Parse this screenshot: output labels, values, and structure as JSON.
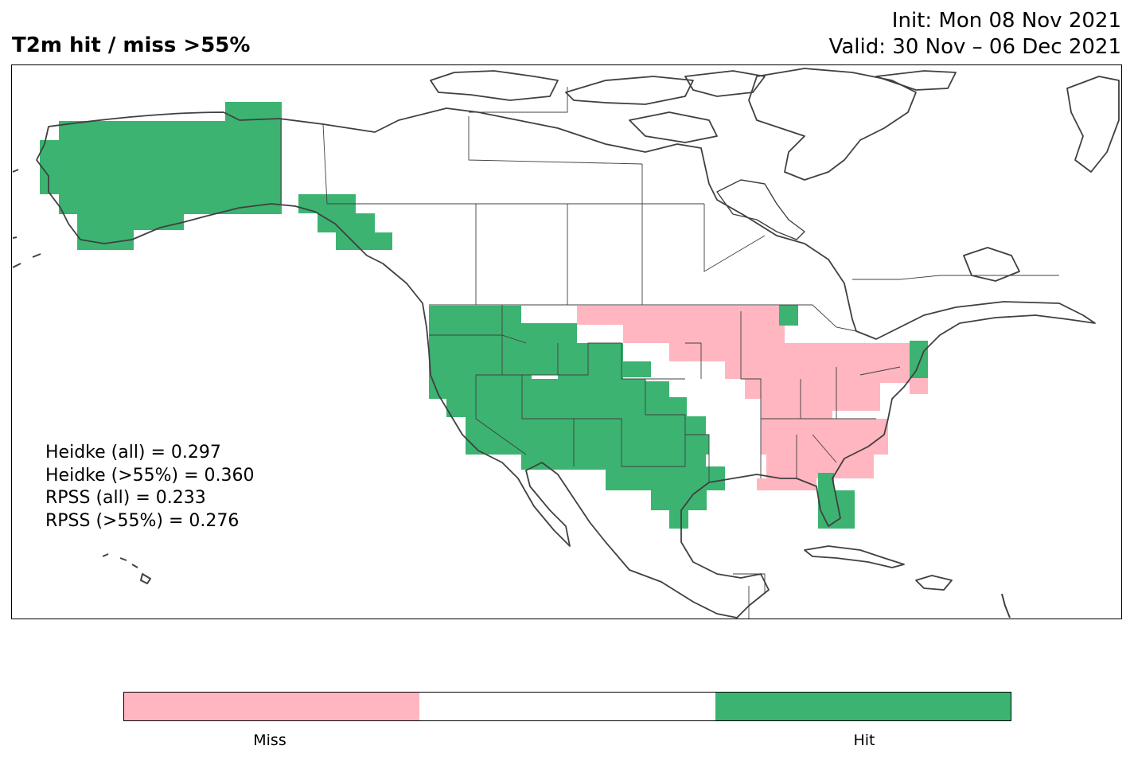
{
  "title": "T2m hit / miss  >55%",
  "init_line": "Init: Mon 08 Nov 2021",
  "valid_line": "Valid: 30 Nov – 06 Dec 2021",
  "colors": {
    "miss": "#FFB6C1",
    "neutral": "#FFFFFF",
    "hit": "#3CB371",
    "coast": "#404040"
  },
  "scores": [
    "Heidke (all) = 0.297",
    "Heidke (>55%) = 0.360",
    "RPSS (all) = 0.233",
    "RPSS (>55%) = 0.276"
  ],
  "colorbar": {
    "segments": [
      "miss",
      "neutral",
      "hit"
    ],
    "labels": [
      "Miss",
      "Hit"
    ]
  },
  "chart_data": {
    "type": "heatmap",
    "categories": [
      "Miss",
      "Hit"
    ],
    "title": "T2m hit / miss  >55%",
    "region_summary": [
      {
        "region": "Alaska",
        "category": "Hit"
      },
      {
        "region": "Western United States",
        "category": "Hit"
      },
      {
        "region": "Texas / Oklahoma",
        "category": "Hit"
      },
      {
        "region": "Florida",
        "category": "Hit"
      },
      {
        "region": "Northern Plains / Great Lakes",
        "category": "Miss"
      },
      {
        "region": "Southeast / Mid-Atlantic / Northeast",
        "category": "Miss"
      }
    ]
  }
}
